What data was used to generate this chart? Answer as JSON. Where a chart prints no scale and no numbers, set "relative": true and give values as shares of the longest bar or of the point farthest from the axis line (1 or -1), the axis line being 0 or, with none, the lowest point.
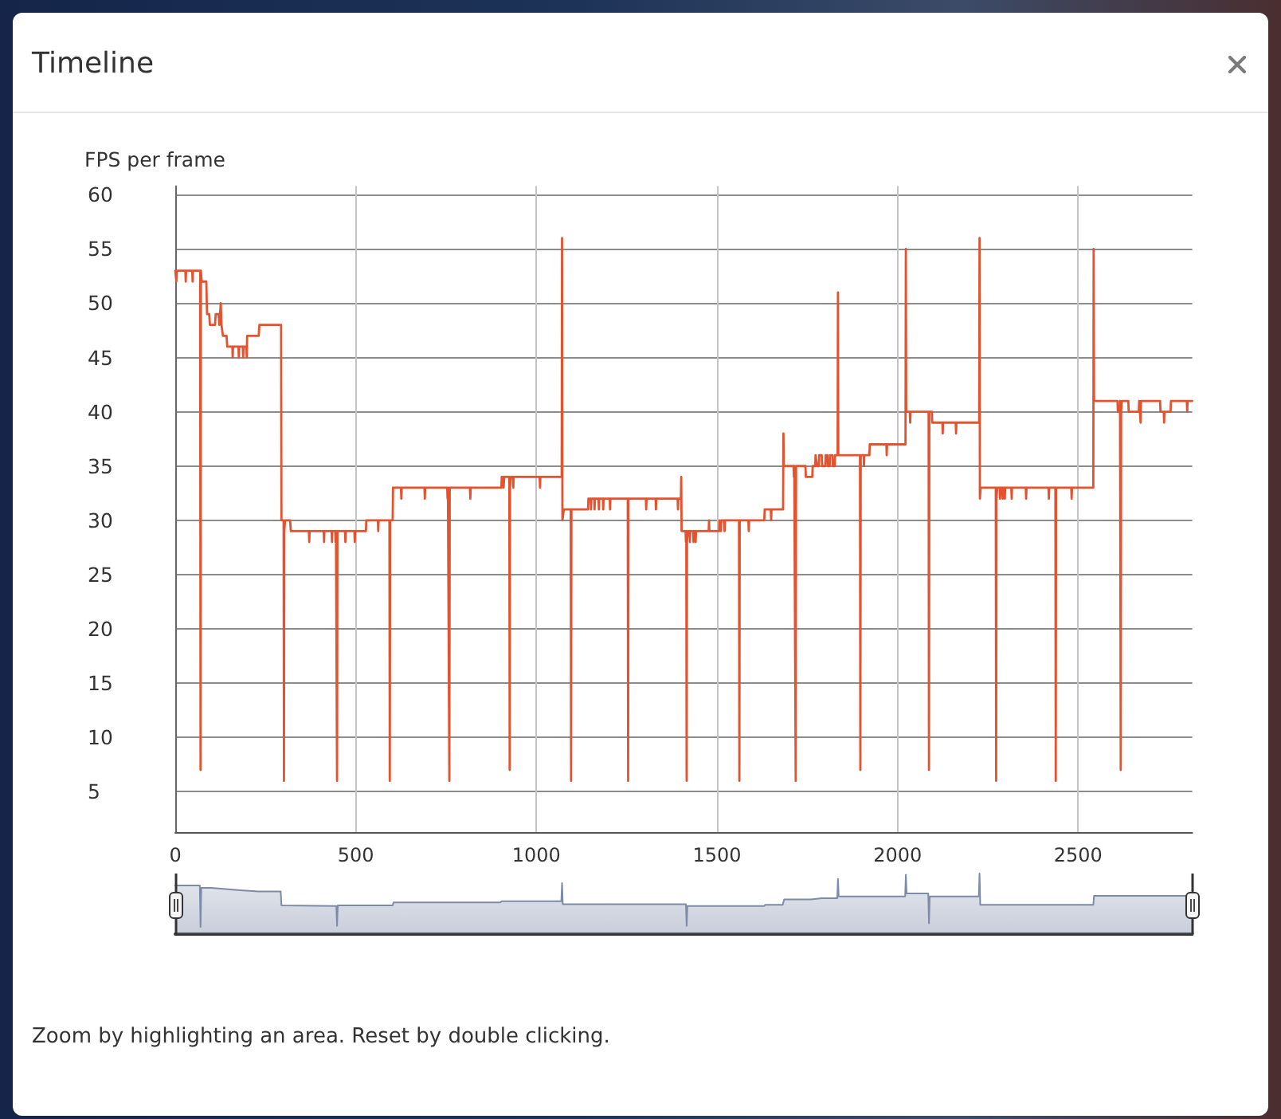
{
  "chart_data": [
    {
      "type": "line",
      "title": "Timeline",
      "ylabel": "FPS per frame",
      "x": [
        0,
        2,
        3,
        4,
        28,
        29,
        30,
        47,
        48,
        49,
        69,
        70,
        71,
        73,
        86,
        88,
        94,
        96,
        110,
        112,
        120,
        122,
        125,
        126,
        128,
        131,
        132,
        142,
        144,
        158,
        159,
        160,
        175,
        176,
        177,
        187,
        188,
        189,
        197,
        198,
        199,
        231,
        233,
        293,
        294,
        300,
        301,
        302,
        304,
        318,
        320,
        370,
        371,
        372,
        411,
        412,
        413,
        433,
        434,
        435,
        443,
        444,
        445,
        447,
        448,
        449,
        470,
        471,
        472,
        496,
        497,
        498,
        528,
        529,
        561,
        562,
        563,
        593,
        594,
        595,
        602,
        603,
        625,
        626,
        627,
        690,
        691,
        692,
        753,
        754,
        755,
        758,
        759,
        760,
        816,
        817,
        818,
        903,
        904,
        908,
        909,
        911,
        925,
        926,
        927,
        929,
        935,
        936,
        937,
        1009,
        1010,
        1011,
        1070,
        1071,
        1072,
        1075,
        1076,
        1095,
        1096,
        1097,
        1143,
        1144,
        1150,
        1151,
        1152,
        1160,
        1161,
        1162,
        1172,
        1173,
        1174,
        1184,
        1185,
        1186,
        1203,
        1204,
        1205,
        1253,
        1254,
        1255,
        1303,
        1304,
        1305,
        1330,
        1331,
        1332,
        1391,
        1392,
        1393,
        1400,
        1401,
        1402,
        1413,
        1414,
        1415,
        1416,
        1417,
        1419,
        1424,
        1425,
        1426,
        1434,
        1435,
        1436,
        1440,
        1441,
        1442,
        1477,
        1478,
        1479,
        1506,
        1507,
        1510,
        1511,
        1512,
        1520,
        1521,
        1522,
        1561,
        1562,
        1563,
        1587,
        1588,
        1589,
        1631,
        1632,
        1649,
        1650,
        1651,
        1683,
        1684,
        1685,
        1712,
        1713,
        1714,
        1717,
        1718,
        1719,
        1745,
        1746,
        1764,
        1765,
        1772,
        1773,
        1776,
        1777,
        1782,
        1783,
        1790,
        1791,
        1800,
        1801,
        1806,
        1807,
        1812,
        1813,
        1820,
        1821,
        1826,
        1827,
        1834,
        1835,
        1836,
        1896,
        1897,
        1898,
        1906,
        1907,
        1908,
        1922,
        1923,
        1969,
        1970,
        1971,
        2022,
        2023,
        2024,
        2034,
        2035,
        2036,
        2086,
        2087,
        2088,
        2095,
        2096,
        2124,
        2125,
        2126,
        2161,
        2162,
        2163,
        2226,
        2227,
        2228,
        2230,
        2272,
        2273,
        2274,
        2276,
        2283,
        2284,
        2285,
        2290,
        2291,
        2292,
        2296,
        2297,
        2298,
        2315,
        2316,
        2317,
        2355,
        2356,
        2357,
        2418,
        2419,
        2420,
        2437,
        2438,
        2439,
        2481,
        2482,
        2483,
        2542,
        2543,
        2544,
        2609,
        2610,
        2615,
        2616,
        2617,
        2618,
        2619,
        2621,
        2639,
        2640,
        2668,
        2669,
        2672,
        2673,
        2674,
        2727,
        2728,
        2737,
        2738,
        2739,
        2756,
        2757,
        2801,
        2802,
        2803,
        2816
      ],
      "values": [
        53,
        53,
        52,
        53,
        53,
        52,
        53,
        53,
        52,
        53,
        53,
        7,
        53,
        52,
        52,
        49,
        49,
        48,
        48,
        49,
        49,
        48,
        48,
        50,
        48,
        48,
        47,
        47,
        46,
        46,
        45,
        46,
        46,
        45,
        46,
        46,
        45,
        46,
        46,
        45,
        47,
        47,
        48,
        48,
        30,
        30,
        6,
        29,
        30,
        30,
        29,
        29,
        28,
        29,
        29,
        28,
        29,
        29,
        28,
        29,
        29,
        28,
        29,
        29,
        6,
        29,
        29,
        28,
        29,
        29,
        28,
        29,
        29,
        30,
        30,
        29,
        30,
        30,
        6,
        30,
        30,
        33,
        33,
        32,
        33,
        33,
        32,
        33,
        33,
        32,
        33,
        33,
        6,
        33,
        33,
        32,
        33,
        33,
        34,
        34,
        33,
        34,
        34,
        7,
        33,
        34,
        34,
        33,
        34,
        34,
        33,
        34,
        34,
        56,
        30,
        30,
        31,
        31,
        6,
        31,
        31,
        32,
        32,
        31,
        32,
        32,
        31,
        32,
        32,
        31,
        32,
        32,
        31,
        32,
        32,
        31,
        32,
        32,
        6,
        32,
        32,
        31,
        32,
        32,
        31,
        32,
        32,
        31,
        32,
        32,
        34,
        29,
        29,
        28,
        29,
        6,
        28,
        29,
        29,
        28,
        29,
        29,
        28,
        29,
        29,
        28,
        29,
        29,
        30,
        29,
        29,
        30,
        30,
        29,
        30,
        30,
        29,
        30,
        30,
        6,
        30,
        30,
        29,
        30,
        30,
        31,
        31,
        30,
        31,
        31,
        38,
        35,
        35,
        34,
        35,
        35,
        6,
        35,
        35,
        34,
        34,
        35,
        35,
        36,
        36,
        35,
        35,
        36,
        36,
        35,
        35,
        36,
        36,
        35,
        35,
        36,
        36,
        35,
        35,
        36,
        36,
        51,
        36,
        36,
        7,
        36,
        36,
        35,
        36,
        36,
        37,
        37,
        36,
        37,
        37,
        55,
        40,
        40,
        39,
        40,
        40,
        7,
        40,
        40,
        39,
        39,
        38,
        39,
        39,
        38,
        39,
        39,
        56,
        32,
        33,
        33,
        6,
        32,
        33,
        33,
        32,
        33,
        33,
        32,
        33,
        33,
        32,
        33,
        33,
        32,
        33,
        33,
        32,
        33,
        33,
        32,
        33,
        33,
        6,
        33,
        33,
        32,
        33,
        33,
        55,
        41,
        41,
        40,
        40,
        41,
        41,
        7,
        40,
        41,
        41,
        40,
        40,
        41,
        41,
        39,
        41,
        41,
        40,
        40,
        39,
        40,
        40,
        41,
        41,
        40,
        41,
        41
      ],
      "color": "#e4532f",
      "line_style": "solid",
      "marker": "none",
      "grid": true,
      "xlim": [
        0,
        2816
      ],
      "xticks": [
        0,
        500,
        1000,
        1500,
        2000,
        2500
      ],
      "ylim": [
        1.2,
        60.8
      ],
      "yticks": [
        5,
        10,
        15,
        20,
        25,
        30,
        35,
        40,
        45,
        50,
        55,
        60
      ]
    },
    {
      "type": "area",
      "relative": true,
      "tick_labels": false,
      "xlim": [
        0,
        2816
      ],
      "x": [
        0,
        68,
        70,
        72,
        100,
        180,
        230,
        292,
        294,
        446,
        448,
        450,
        602,
        604,
        900,
        904,
        1069,
        1071,
        1073,
        1414,
        1416,
        1418,
        1630,
        1634,
        1682,
        1686,
        1760,
        1790,
        1833,
        1835,
        1837,
        2021,
        2023,
        2025,
        2085,
        2087,
        2089,
        2225,
        2227,
        2229,
        2542,
        2544,
        2816
      ],
      "values": [
        0.8,
        0.8,
        0.11,
        0.76,
        0.76,
        0.72,
        0.7,
        0.7,
        0.47,
        0.46,
        0.13,
        0.47,
        0.47,
        0.52,
        0.52,
        0.54,
        0.54,
        0.84,
        0.49,
        0.49,
        0.13,
        0.46,
        0.46,
        0.48,
        0.48,
        0.57,
        0.57,
        0.59,
        0.59,
        0.91,
        0.62,
        0.62,
        0.98,
        0.67,
        0.67,
        0.17,
        0.62,
        0.62,
        1,
        0.48,
        0.48,
        0.63,
        0.63
      ],
      "color": "#7d8aa8",
      "annotations": [
        "Zoom by highlighting an area. Reset by double clicking."
      ]
    }
  ]
}
